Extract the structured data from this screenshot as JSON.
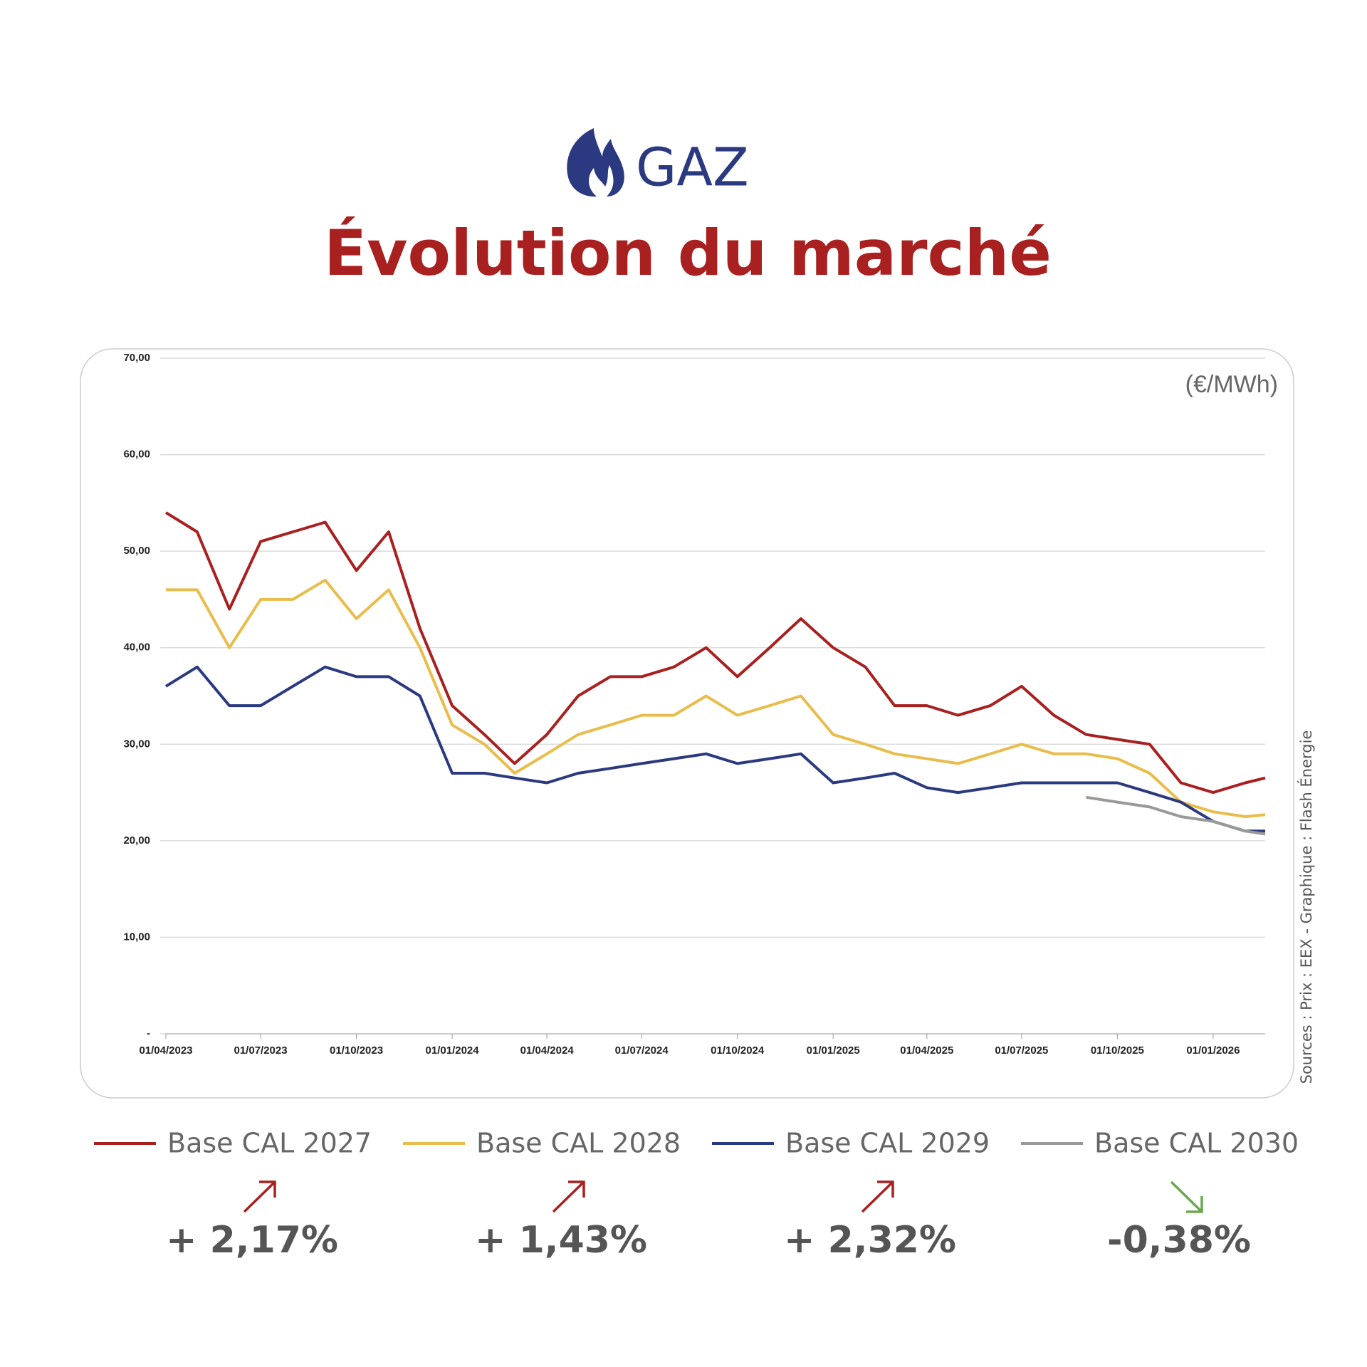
{
  "chart_data": {
    "type": "line",
    "header": "GAZ",
    "title": "Évolution du marché",
    "unit_label": "(€/MWh)",
    "source": "Sources : Prix : EEX - Graphique : Flash Énergie",
    "x": [
      "2023-04-01",
      "2023-05-01",
      "2023-06-01",
      "2023-07-01",
      "2023-08-01",
      "2023-09-01",
      "2023-10-01",
      "2023-11-01",
      "2023-12-01",
      "2024-01-01",
      "2024-02-01",
      "2024-03-01",
      "2024-04-01",
      "2024-05-01",
      "2024-06-01",
      "2024-07-01",
      "2024-08-01",
      "2024-09-01",
      "2024-10-01",
      "2024-11-01",
      "2024-12-01",
      "2025-01-01",
      "2025-02-01",
      "2025-03-01",
      "2025-04-01",
      "2025-05-01",
      "2025-06-01",
      "2025-07-01",
      "2025-08-01",
      "2025-09-01",
      "2025-10-01",
      "2025-11-01",
      "2025-12-01",
      "2026-01-01",
      "2026-02-01",
      "2026-02-20"
    ],
    "xlim": [
      "2023-04-01",
      "2026-02-20"
    ],
    "xticks": [
      {
        "value": "2023-04-01",
        "label": "01/04/2023"
      },
      {
        "value": "2023-07-01",
        "label": "01/07/2023"
      },
      {
        "value": "2023-10-01",
        "label": "01/10/2023"
      },
      {
        "value": "2024-01-01",
        "label": "01/01/2024"
      },
      {
        "value": "2024-04-01",
        "label": "01/04/2024"
      },
      {
        "value": "2024-07-01",
        "label": "01/07/2024"
      },
      {
        "value": "2024-10-01",
        "label": "01/10/2024"
      },
      {
        "value": "2025-01-01",
        "label": "01/01/2025"
      },
      {
        "value": "2025-04-01",
        "label": "01/04/2025"
      },
      {
        "value": "2025-07-01",
        "label": "01/07/2025"
      },
      {
        "value": "2025-10-01",
        "label": "01/10/2025"
      },
      {
        "value": "2026-01-01",
        "label": "01/01/2026"
      }
    ],
    "ylim": [
      0,
      70
    ],
    "yticks": [
      {
        "value": 0,
        "label": "-"
      },
      {
        "value": 10,
        "label": "10,00"
      },
      {
        "value": 20,
        "label": "20,00"
      },
      {
        "value": 30,
        "label": "30,00"
      },
      {
        "value": 40,
        "label": "40,00"
      },
      {
        "value": 50,
        "label": "50,00"
      },
      {
        "value": 60,
        "label": "60,00"
      },
      {
        "value": 70,
        "label": "70,00"
      }
    ],
    "grid": true,
    "series": [
      {
        "name": "Base CAL 2027",
        "color": "#a8201f",
        "change": "+ 2,17%",
        "values": [
          54,
          52,
          44,
          51,
          52,
          53,
          48,
          52,
          42,
          34,
          31,
          28,
          31,
          35,
          37,
          37,
          38,
          40,
          37,
          40,
          43,
          40,
          38,
          34,
          34,
          33,
          34,
          36,
          33,
          31,
          30.5,
          30,
          26,
          25,
          26,
          26.5
        ]
      },
      {
        "name": "Base CAL 2028",
        "color": "#e9bd4c",
        "change": "+ 1,43%",
        "values": [
          46,
          46,
          40,
          45,
          45,
          47,
          43,
          46,
          40,
          32,
          30,
          27,
          29,
          31,
          32,
          33,
          33,
          35,
          33,
          34,
          35,
          31,
          30,
          29,
          28.5,
          28,
          29,
          30,
          29,
          29,
          28.5,
          27,
          24,
          23,
          22.5,
          22.7
        ]
      },
      {
        "name": "Base CAL 2029",
        "color": "#2b3a80",
        "change": "+ 2,32%",
        "values": [
          36,
          38,
          34,
          34,
          36,
          38,
          37,
          37,
          35,
          27,
          27,
          26.5,
          26,
          27,
          27.5,
          28,
          28.5,
          29,
          28,
          28.5,
          29,
          26,
          26.5,
          27,
          25.5,
          25,
          25.5,
          26,
          26,
          26,
          26,
          25,
          24,
          22,
          21,
          21
        ]
      },
      {
        "name": "Base CAL 2030",
        "color": "#999999",
        "change": "-0,38%",
        "values": [
          null,
          null,
          null,
          null,
          null,
          null,
          null,
          null,
          null,
          null,
          null,
          null,
          null,
          null,
          null,
          null,
          null,
          null,
          null,
          null,
          null,
          null,
          null,
          null,
          null,
          null,
          null,
          null,
          null,
          24.5,
          24,
          23.5,
          22.5,
          22,
          21,
          20.7
        ]
      }
    ]
  }
}
